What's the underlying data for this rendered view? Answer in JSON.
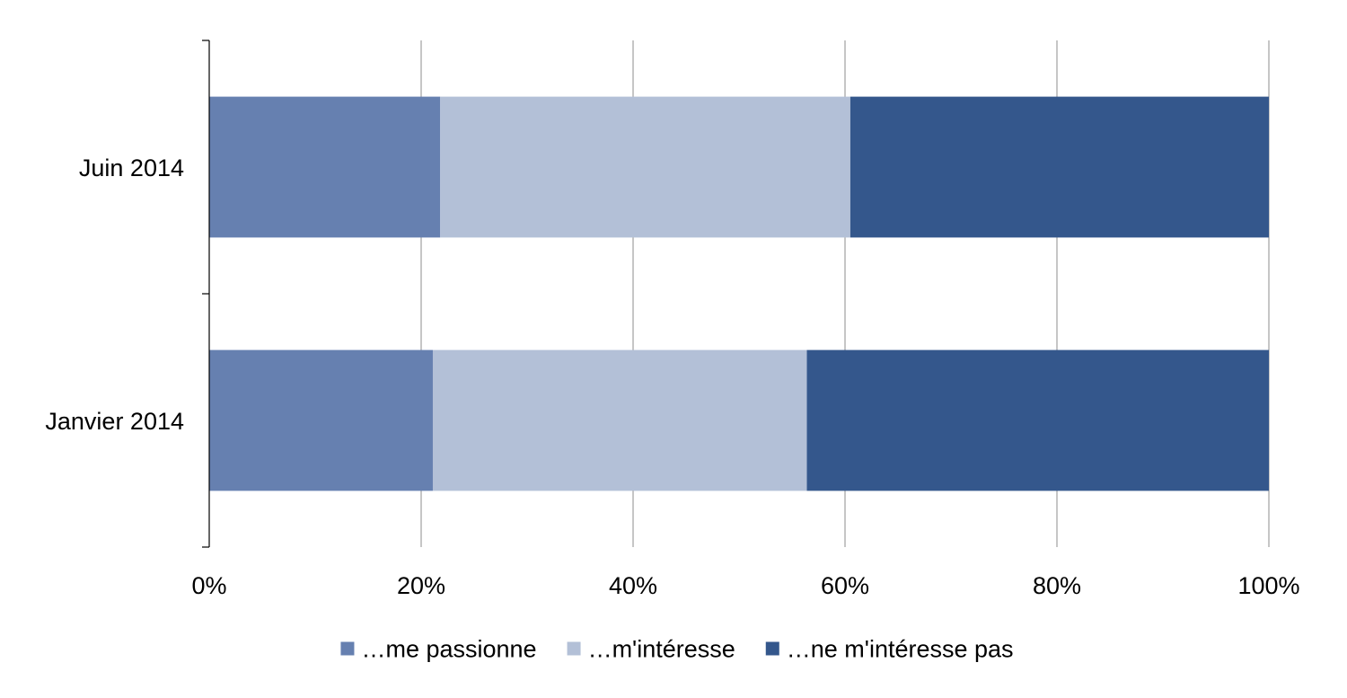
{
  "chart_data": {
    "type": "bar",
    "orientation": "horizontal",
    "stacked": "percent",
    "categories": [
      "Juin 2014",
      "Janvier 2014"
    ],
    "series": [
      {
        "name": "…me passionne",
        "values": [
          21.8,
          21.1
        ],
        "color": "#6680B0"
      },
      {
        "name": "…m'intéresse",
        "values": [
          38.7,
          35.3
        ],
        "color": "#B3C0D7"
      },
      {
        "name": "…ne m'intéresse pas",
        "values": [
          39.5,
          43.6
        ],
        "color": "#34578C"
      }
    ],
    "xlim": [
      0,
      100
    ],
    "xticks": [
      0,
      20,
      40,
      60,
      80,
      100
    ],
    "xtick_labels": [
      "0%",
      "20%",
      "40%",
      "60%",
      "80%",
      "100%"
    ],
    "grid": true,
    "legend": "bottom"
  }
}
